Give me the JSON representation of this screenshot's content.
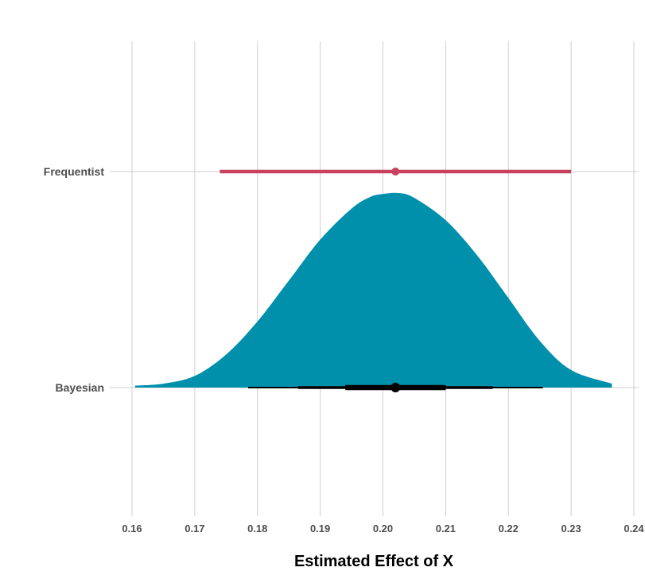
{
  "chart_data": {
    "type": "interval",
    "xlabel": "Estimated Effect of X",
    "ylabel": "",
    "title": "",
    "xlim": [
      0.155,
      0.2405
    ],
    "x_ticks": [
      0.16,
      0.17,
      0.18,
      0.19,
      0.2,
      0.21,
      0.22,
      0.23,
      0.24
    ],
    "x_tick_labels": [
      "0.16",
      "0.17",
      "0.18",
      "0.19",
      "0.20",
      "0.21",
      "0.22",
      "0.23",
      "0.24"
    ],
    "grid": true,
    "categories": [
      "Frequentist",
      "Bayesian"
    ],
    "frequentist": {
      "label": "Frequentist",
      "estimate": 0.202,
      "ci_low": 0.174,
      "ci_high": 0.23,
      "color": "#c8415e"
    },
    "bayesian": {
      "label": "Bayesian",
      "color": "#0090ac",
      "point_estimate": 0.202,
      "intervals": [
        {
          "level": 0.5,
          "low": 0.194,
          "high": 0.21
        },
        {
          "level": 0.8,
          "low": 0.1865,
          "high": 0.2175
        },
        {
          "level": 0.95,
          "low": 0.1785,
          "high": 0.2255
        }
      ],
      "density": {
        "x": [
          0.1605,
          0.165,
          0.17,
          0.175,
          0.18,
          0.185,
          0.19,
          0.195,
          0.198,
          0.2,
          0.2025,
          0.205,
          0.21,
          0.215,
          0.22,
          0.225,
          0.23,
          0.2365
        ],
        "height": [
          0.01,
          0.02,
          0.06,
          0.17,
          0.34,
          0.55,
          0.76,
          0.92,
          0.98,
          0.995,
          1.0,
          0.975,
          0.86,
          0.68,
          0.46,
          0.24,
          0.09,
          0.02
        ]
      }
    }
  }
}
